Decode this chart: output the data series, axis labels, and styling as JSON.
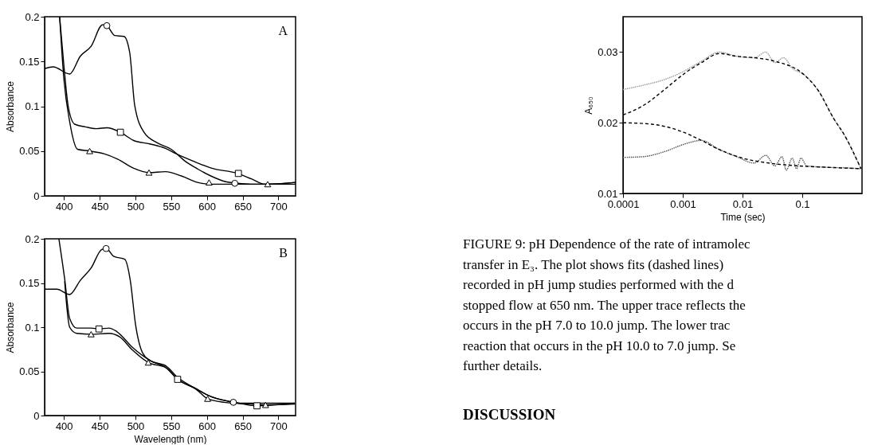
{
  "chart_data": [
    {
      "type": "line",
      "ylabel": "Absorbance",
      "xlim": [
        373,
        724
      ],
      "ylim": [
        0,
        0.2
      ],
      "xticks": [
        400,
        450,
        500,
        550,
        600,
        650,
        700
      ],
      "yticks": [
        0,
        0.05,
        0.1,
        0.15,
        0.2
      ],
      "grid": false,
      "annotations": [
        "A"
      ],
      "series": [
        {
          "color": "#000000",
          "line_style": "solid",
          "x": [
            373,
            385,
            408,
            423,
            438,
            454,
            460,
            471,
            484,
            492,
            499,
            512,
            531,
            550,
            569,
            587,
            606,
            625,
            643,
            662,
            685,
            724
          ],
          "values": [
            0.142,
            0.144,
            0.136,
            0.156,
            0.167,
            0.191,
            0.19,
            0.179,
            0.178,
            0.16,
            0.101,
            0.071,
            0.059,
            0.052,
            0.039,
            0.03,
            0.022,
            0.016,
            0.014,
            0.013,
            0.013,
            0.015
          ]
        },
        {
          "color": "#000000",
          "line_style": "solid",
          "x": [
            394,
            400,
            406,
            415,
            430,
            445,
            460,
            479,
            497,
            520,
            542,
            557,
            580,
            606,
            643,
            662,
            681,
            724
          ],
          "values": [
            0.2,
            0.145,
            0.1,
            0.08,
            0.077,
            0.075,
            0.076,
            0.071,
            0.062,
            0.058,
            0.053,
            0.047,
            0.039,
            0.031,
            0.025,
            0.019,
            0.013,
            0.015
          ]
        },
        {
          "color": "#000000",
          "line_style": "solid",
          "x": [
            394,
            400,
            408,
            419,
            436,
            456,
            475,
            497,
            519,
            542,
            565,
            587,
            606,
            643,
            685,
            724
          ],
          "values": [
            0.2,
            0.13,
            0.083,
            0.052,
            0.05,
            0.047,
            0.041,
            0.031,
            0.026,
            0.027,
            0.022,
            0.015,
            0.013,
            0.013,
            0.013,
            0.013
          ]
        },
        {
          "type": "scatter",
          "marker": "circle",
          "color": "#000000",
          "x": [
            460,
            639
          ],
          "values": [
            0.19,
            0.014
          ]
        },
        {
          "type": "scatter",
          "marker": "square",
          "color": "#000000",
          "x": [
            479,
            644
          ],
          "values": [
            0.071,
            0.025
          ]
        },
        {
          "type": "scatter",
          "marker": "triangle",
          "color": "#000000",
          "x": [
            436,
            519,
            603,
            685
          ],
          "values": [
            0.05,
            0.026,
            0.015,
            0.013
          ]
        }
      ]
    },
    {
      "type": "line",
      "xlabel": "Wavelength (nm)",
      "ylabel": "Absorbance",
      "xlim": [
        373,
        724
      ],
      "ylim": [
        0,
        0.2
      ],
      "xticks": [
        400,
        450,
        500,
        550,
        600,
        650,
        700
      ],
      "yticks": [
        0,
        0.05,
        0.1,
        0.15,
        0.2
      ],
      "grid": false,
      "annotations": [
        "B"
      ],
      "series": [
        {
          "color": "#000000",
          "line_style": "solid",
          "x": [
            374,
            390,
            408,
            423,
            438,
            453,
            459,
            470,
            485,
            493,
            500,
            510,
            521,
            543,
            558,
            581,
            607,
            626,
            645,
            682,
            723
          ],
          "values": [
            0.143,
            0.143,
            0.137,
            0.153,
            0.167,
            0.188,
            0.189,
            0.18,
            0.177,
            0.152,
            0.104,
            0.071,
            0.062,
            0.056,
            0.044,
            0.032,
            0.021,
            0.017,
            0.014,
            0.014,
            0.014
          ]
        },
        {
          "color": "#000000",
          "line_style": "solid",
          "x": [
            393,
            401,
            408,
            418,
            438,
            449,
            463,
            474,
            496,
            521,
            543,
            559,
            581,
            607,
            645,
            669,
            723
          ],
          "values": [
            0.2,
            0.155,
            0.11,
            0.099,
            0.099,
            0.098,
            0.099,
            0.095,
            0.077,
            0.062,
            0.054,
            0.041,
            0.032,
            0.021,
            0.014,
            0.011,
            0.014
          ]
        },
        {
          "color": "#000000",
          "line_style": "solid",
          "x": [
            401,
            408,
            418,
            438,
            463,
            478,
            496,
            518,
            543,
            559,
            586,
            601,
            624,
            661,
            682,
            723
          ],
          "values": [
            0.152,
            0.1,
            0.093,
            0.092,
            0.093,
            0.089,
            0.074,
            0.06,
            0.054,
            0.041,
            0.029,
            0.019,
            0.015,
            0.013,
            0.012,
            0.013
          ]
        },
        {
          "type": "scatter",
          "marker": "circle",
          "color": "#000000",
          "x": [
            459,
            637
          ],
          "values": [
            0.189,
            0.015
          ]
        },
        {
          "type": "scatter",
          "marker": "square",
          "color": "#000000",
          "x": [
            449,
            559,
            670
          ],
          "values": [
            0.098,
            0.041,
            0.011
          ]
        },
        {
          "type": "scatter",
          "marker": "triangle",
          "color": "#000000",
          "x": [
            438,
            518,
            601,
            682
          ],
          "values": [
            0.092,
            0.06,
            0.019,
            0.012
          ]
        }
      ]
    },
    {
      "type": "line",
      "xlabel": "Time (sec)",
      "ylabel": "A₆₅₀",
      "log": "x",
      "xlim": [
        0.0001,
        1
      ],
      "ylim": [
        0.01,
        0.035
      ],
      "xticks": [
        0.0001,
        0.001,
        0.01,
        0.1
      ],
      "yticks": [
        0.01,
        0.02,
        0.03
      ],
      "grid": false,
      "annotations": [
        "FIGURE 9:  pH Dependence of the rate of intramolec",
        "transfer in E₃.  The plot shows fits (dashed lines)",
        "recorded in pH jump studies performed with the d",
        "stopped flow at 650 nm.  The upper trace reflects the",
        "occurs in the pH 7.0 to 10.0 jump.  The lower trac",
        "reaction that occurs in the pH 10.0 to 7.0 jump.  Se",
        "further details.",
        "DISCUSSION"
      ],
      "series": [
        {
          "color": "#999999",
          "line_style": "dotted",
          "x": [
            0.0001,
            0.000215,
            0.00053,
            0.001,
            0.00205,
            0.0041,
            0.008,
            0.0157,
            0.0245,
            0.0347,
            0.0486,
            0.068,
            0.107,
            0.187,
            0.33,
            0.52,
            0.77,
            0.96
          ],
          "values": [
            0.0247,
            0.0253,
            0.0262,
            0.0272,
            0.0287,
            0.03,
            0.0294,
            0.0292,
            0.03,
            0.0285,
            0.0292,
            0.0277,
            0.0268,
            0.0245,
            0.0207,
            0.0181,
            0.0152,
            0.0135
          ]
        },
        {
          "color": "#000000",
          "line_style": "dashed",
          "x": [
            0.0001,
            0.000215,
            0.00053,
            0.001,
            0.00205,
            0.0041,
            0.008,
            0.0157,
            0.0347,
            0.107,
            0.187,
            0.33,
            0.52,
            0.96
          ],
          "values": [
            0.0211,
            0.0224,
            0.0249,
            0.0268,
            0.0285,
            0.0298,
            0.0294,
            0.0292,
            0.0287,
            0.0268,
            0.0245,
            0.0207,
            0.0181,
            0.0135
          ]
        },
        {
          "color": "#555555",
          "line_style": "dotted",
          "x": [
            0.0001,
            0.000215,
            0.00053,
            0.001,
            0.00205,
            0.0041,
            0.008,
            0.0157,
            0.0245,
            0.0347,
            0.0458,
            0.054,
            0.068,
            0.08,
            0.095,
            0.119,
            0.26,
            0.58,
            0.96
          ],
          "values": [
            0.0151,
            0.0152,
            0.016,
            0.0169,
            0.0175,
            0.0162,
            0.0152,
            0.0143,
            0.0154,
            0.0139,
            0.0152,
            0.0133,
            0.015,
            0.0135,
            0.015,
            0.0139,
            0.0137,
            0.0136,
            0.0135
          ]
        },
        {
          "color": "#000000",
          "line_style": "dashed",
          "x": [
            0.0001,
            0.0003,
            0.00093,
            0.00205,
            0.0041,
            0.01,
            0.0275,
            0.085,
            0.26,
            0.96
          ],
          "values": [
            0.02,
            0.0198,
            0.0188,
            0.0175,
            0.0162,
            0.015,
            0.0143,
            0.0139,
            0.0137,
            0.0135
          ]
        }
      ]
    }
  ]
}
